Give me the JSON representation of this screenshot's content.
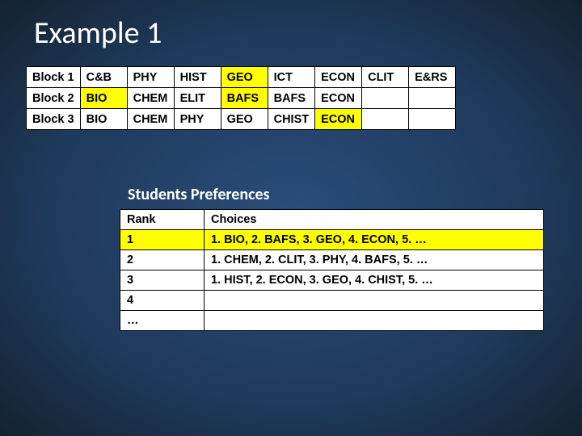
{
  "title": "Example 1",
  "blocks_table": {
    "type": "table",
    "background_color": "#ffffff",
    "border_color": "#000000",
    "highlight_color": "#ffff00",
    "font_size": 14.5,
    "font_weight": "bold",
    "rows": [
      {
        "label": "Block 1",
        "cells": [
          {
            "text": "C&B",
            "hl": false
          },
          {
            "text": "PHY",
            "hl": false
          },
          {
            "text": "HIST",
            "hl": false
          },
          {
            "text": "GEO",
            "hl": true
          },
          {
            "text": "ICT",
            "hl": false
          },
          {
            "text": "ECON",
            "hl": false
          },
          {
            "text": "CLIT",
            "hl": false
          },
          {
            "text": "E&RS",
            "hl": false
          }
        ]
      },
      {
        "label": "Block 2",
        "cells": [
          {
            "text": "BIO",
            "hl": true
          },
          {
            "text": "CHEM",
            "hl": false
          },
          {
            "text": "ELIT",
            "hl": false
          },
          {
            "text": "BAFS",
            "hl": true
          },
          {
            "text": "BAFS",
            "hl": false
          },
          {
            "text": "ECON",
            "hl": false
          },
          {
            "text": "",
            "hl": false
          },
          {
            "text": "",
            "hl": false
          }
        ]
      },
      {
        "label": "Block 3",
        "cells": [
          {
            "text": "BIO",
            "hl": false
          },
          {
            "text": "CHEM",
            "hl": false
          },
          {
            "text": "PHY",
            "hl": false
          },
          {
            "text": "GEO",
            "hl": false
          },
          {
            "text": "CHIST",
            "hl": false
          },
          {
            "text": "ECON",
            "hl": true
          },
          {
            "text": "",
            "hl": false
          },
          {
            "text": "",
            "hl": false
          }
        ]
      }
    ]
  },
  "subtitle": "Students Preferences",
  "prefs_table": {
    "type": "table",
    "background_color": "#ffffff",
    "border_color": "#000000",
    "highlight_color": "#ffff00",
    "font_size": 14.5,
    "font_weight": "bold",
    "header": {
      "rank": "Rank",
      "choices": "Choices"
    },
    "rows": [
      {
        "rank": "1",
        "choices": "1. BIO, 2. BAFS, 3. GEO, 4. ECON, 5. …",
        "hl": true
      },
      {
        "rank": "2",
        "choices": "1. CHEM, 2. CLIT, 3. PHY, 4. BAFS, 5. …",
        "hl": false
      },
      {
        "rank": "3",
        "choices": "1. HIST, 2. ECON, 3. GEO, 4. CHIST, 5. …",
        "hl": false
      },
      {
        "rank": "4",
        "choices": "",
        "hl": false
      },
      {
        "rank": "…",
        "choices": "",
        "hl": false
      }
    ]
  },
  "colors": {
    "slide_bg_inner": "#2a4d7a",
    "slide_bg_outer": "#15222f",
    "text_white": "#ffffff"
  }
}
